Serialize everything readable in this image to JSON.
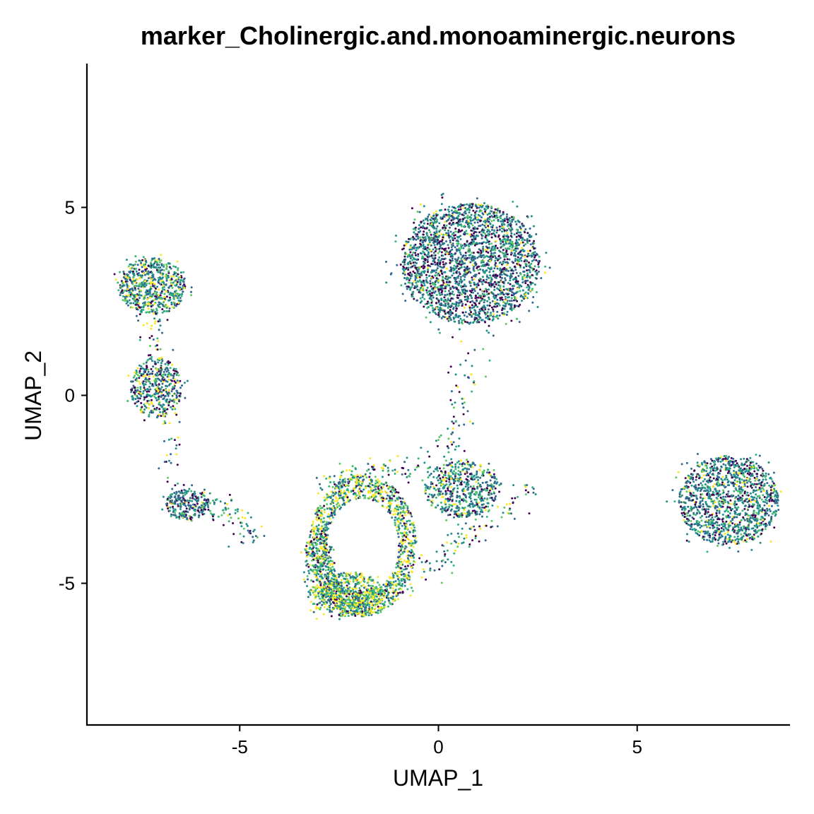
{
  "chart_data": {
    "type": "scatter",
    "title": "marker_Cholinergic.and.monoaminergic.neurons",
    "xlabel": "UMAP_1",
    "ylabel": "UMAP_2",
    "xlim": [
      -8.8,
      8.8
    ],
    "ylim": [
      -8.8,
      9.0
    ],
    "xticks": [
      -5,
      0,
      5
    ],
    "yticks": [
      -5,
      0,
      5
    ],
    "xtick_labels": [
      "-5",
      "0",
      "5"
    ],
    "ytick_labels": [
      "-5",
      "0",
      "5"
    ],
    "grid": false,
    "legend": "none",
    "colormap": "viridis",
    "palette": [
      "#440154",
      "#31688e",
      "#21908d",
      "#35b779",
      "#5ec962",
      "#fde725"
    ],
    "clusters": [
      {
        "shape": "disc",
        "center": [
          0.8,
          3.5
        ],
        "radius": [
          1.75,
          1.6
        ],
        "n": 2400,
        "weights": [
          0.24,
          0.3,
          0.26,
          0.1,
          0.05,
          0.05
        ]
      },
      {
        "shape": "disc",
        "center": [
          7.3,
          -2.8
        ],
        "radius": [
          1.25,
          1.2
        ],
        "n": 1300,
        "weights": [
          0.18,
          0.3,
          0.28,
          0.12,
          0.05,
          0.07
        ]
      },
      {
        "shape": "disc",
        "center": [
          -7.2,
          2.9
        ],
        "radius": [
          0.85,
          0.75
        ],
        "n": 650,
        "weights": [
          0.15,
          0.22,
          0.25,
          0.15,
          0.08,
          0.15
        ]
      },
      {
        "shape": "disc",
        "center": [
          -7.1,
          0.2
        ],
        "radius": [
          0.65,
          0.8
        ],
        "n": 420,
        "weights": [
          0.22,
          0.25,
          0.22,
          0.12,
          0.07,
          0.12
        ]
      },
      {
        "shape": "disc",
        "center": [
          -6.3,
          -2.9
        ],
        "radius": [
          0.55,
          0.42
        ],
        "n": 250,
        "weights": [
          0.28,
          0.32,
          0.22,
          0.08,
          0.05,
          0.05
        ]
      },
      {
        "shape": "disc",
        "center": [
          0.6,
          -2.5
        ],
        "radius": [
          0.95,
          0.75
        ],
        "n": 550,
        "weights": [
          0.15,
          0.28,
          0.25,
          0.14,
          0.08,
          0.1
        ]
      },
      {
        "shape": "ring",
        "center": [
          -1.9,
          -4.0
        ],
        "radius": [
          1.25,
          1.75
        ],
        "n": 1300,
        "weights": [
          0.1,
          0.14,
          0.18,
          0.16,
          0.14,
          0.28
        ]
      },
      {
        "shape": "disc",
        "center": [
          -2.2,
          -5.3
        ],
        "radius": [
          0.8,
          0.6
        ],
        "n": 500,
        "weights": [
          0.08,
          0.12,
          0.16,
          0.18,
          0.16,
          0.3
        ]
      },
      {
        "shape": "line",
        "from": [
          -7.2,
          2.0
        ],
        "to": [
          -6.6,
          -2.4
        ],
        "n": 90,
        "weights": [
          0.2,
          0.2,
          0.2,
          0.15,
          0.1,
          0.15
        ]
      },
      {
        "shape": "line",
        "from": [
          -5.9,
          -2.7
        ],
        "to": [
          -4.5,
          -3.8
        ],
        "n": 80,
        "weights": [
          0.15,
          0.25,
          0.25,
          0.15,
          0.1,
          0.1
        ]
      },
      {
        "shape": "line",
        "from": [
          -0.9,
          -5.2
        ],
        "to": [
          2.2,
          -2.6
        ],
        "n": 120,
        "weights": [
          0.15,
          0.2,
          0.22,
          0.18,
          0.12,
          0.13
        ]
      },
      {
        "shape": "line",
        "from": [
          0.9,
          1.4
        ],
        "to": [
          0.2,
          -1.6
        ],
        "n": 70,
        "weights": [
          0.15,
          0.2,
          0.22,
          0.16,
          0.12,
          0.15
        ]
      },
      {
        "shape": "line",
        "from": [
          -2.9,
          -2.4
        ],
        "to": [
          -0.3,
          -1.8
        ],
        "n": 110,
        "weights": [
          0.12,
          0.18,
          0.22,
          0.18,
          0.12,
          0.18
        ]
      },
      {
        "shape": "disc",
        "center": [
          -3.0,
          -4.6
        ],
        "radius": [
          0.4,
          1.1
        ],
        "n": 260,
        "weights": [
          0.1,
          0.15,
          0.18,
          0.15,
          0.14,
          0.28
        ]
      }
    ]
  }
}
